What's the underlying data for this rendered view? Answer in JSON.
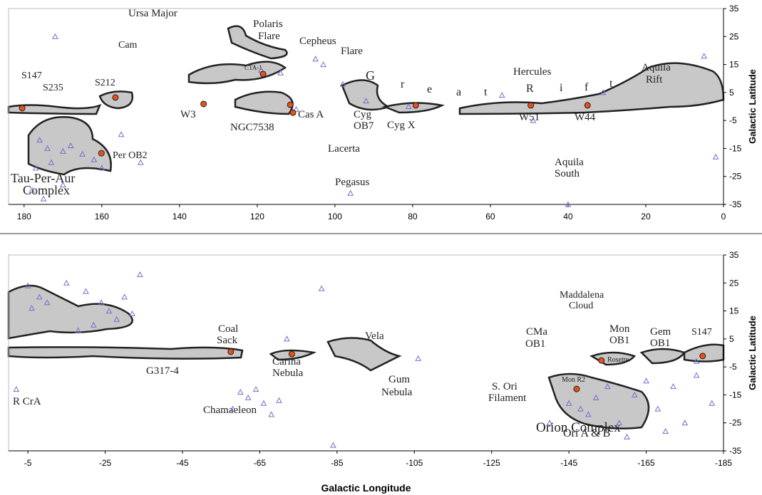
{
  "chart_data": [
    {
      "type": "scatter",
      "ylabel": "Galactic Latitude",
      "xlim": [
        184,
        0
      ],
      "ylim": [
        -35,
        35
      ],
      "xticks": [
        180,
        160,
        140,
        120,
        100,
        80,
        60,
        40,
        20,
        0
      ],
      "yticks": [
        35,
        25,
        15,
        5,
        -5,
        -15,
        -25,
        -35
      ],
      "color": "#7070d0",
      "x": [
        172,
        176,
        174,
        170,
        168,
        173,
        177,
        165,
        162,
        160,
        178,
        175,
        170,
        155,
        150,
        114,
        105,
        103,
        98,
        92,
        81,
        57,
        49,
        31,
        5,
        2,
        96,
        40,
        119,
        110
      ],
      "y": [
        25,
        -12,
        -15,
        -16,
        -14,
        -20,
        -22,
        -17,
        -19,
        -22,
        -30,
        -33,
        -28,
        -10,
        -20,
        12,
        17,
        15,
        8,
        2,
        0,
        4,
        -5,
        5,
        18,
        -18,
        -31,
        -35,
        13,
        -1
      ],
      "sources": {
        "color": "#e8501c",
        "x": [
          180.5,
          156.5,
          118.5,
          133.8,
          111.5,
          110.8,
          79.2,
          49.6,
          35,
          160.1
        ],
        "y": [
          -0.6,
          3.2,
          11.6,
          0.9,
          0.6,
          -2.2,
          0.4,
          0.4,
          0.4,
          -16.7
        ]
      },
      "annotations": [
        "Ursa Major",
        "Cam",
        "Polaris",
        "Flare",
        "Cepheus",
        "Flare",
        "CTA-1",
        "S147",
        "S235",
        "S212",
        "G",
        "r",
        "e",
        "a",
        "t",
        "R",
        "i",
        "f",
        "t",
        "Hercules",
        "Aquila",
        "Rift",
        "W3",
        "NGC7538",
        "Cas A",
        "Cyg",
        "OB7",
        "Cyg X",
        "W51",
        "W44",
        "Per OB2",
        "Lacerta",
        "Aquila",
        "South",
        "Tau-Per-Aur",
        "Complex",
        "Pegasus"
      ]
    },
    {
      "type": "scatter",
      "ylabel": "Galactic Latitude",
      "xlabel": "Galactic Longitude",
      "xlim": [
        0,
        -185
      ],
      "ylim": [
        -35,
        35
      ],
      "xticks": [
        -5,
        -25,
        -45,
        -65,
        -85,
        -105,
        -125,
        -145,
        -165,
        -185
      ],
      "yticks": [
        35,
        25,
        15,
        5,
        -5,
        -15,
        -25,
        -35
      ],
      "color": "#7070d0",
      "x": [
        -2,
        -5,
        -8,
        -10,
        -6,
        -15,
        -20,
        -24,
        -26,
        -28,
        -30,
        -32,
        -34,
        -22,
        -18,
        -81,
        -72,
        -60,
        -62,
        -64,
        -66,
        -58,
        -68,
        -70,
        -84,
        -106,
        -145,
        -148,
        -150,
        -152,
        -155,
        -158,
        -162,
        -165,
        -168,
        -170,
        -172,
        -175,
        -178,
        -182,
        -160,
        -140,
        -178
      ],
      "y": [
        -13,
        24,
        20,
        18,
        16,
        25,
        22,
        18,
        15,
        12,
        20,
        14,
        28,
        10,
        8,
        23,
        5,
        -14,
        -16,
        -13,
        -18,
        -20,
        -22,
        -17,
        -33,
        -2,
        -18,
        -20,
        -22,
        -16,
        -12,
        -25,
        -15,
        -10,
        -20,
        -28,
        -12,
        -25,
        -8,
        -18,
        -30,
        -25,
        -3
      ],
      "sources": {
        "color": "#e8501c",
        "x": [
          -57.5,
          -73.3,
          -153.4,
          -147,
          -179.6
        ],
        "y": [
          0.4,
          -0.4,
          -2.7,
          -12.9,
          -1.1
        ]
      },
      "annotations": [
        "Maddalena",
        "Cloud",
        "Coal",
        "Sack",
        "Vela",
        "CMa",
        "OB1",
        "Mon",
        "OB1",
        "Gem",
        "OB1",
        "S147",
        "G317-4",
        "Carina",
        "Nebula",
        "Gum",
        "Nebula",
        "S. Ori",
        "Filament",
        "R CrA",
        "Chamaeleon",
        "Mon R2",
        "Rosette",
        "Ori A & B",
        "Orion Complex"
      ]
    }
  ]
}
